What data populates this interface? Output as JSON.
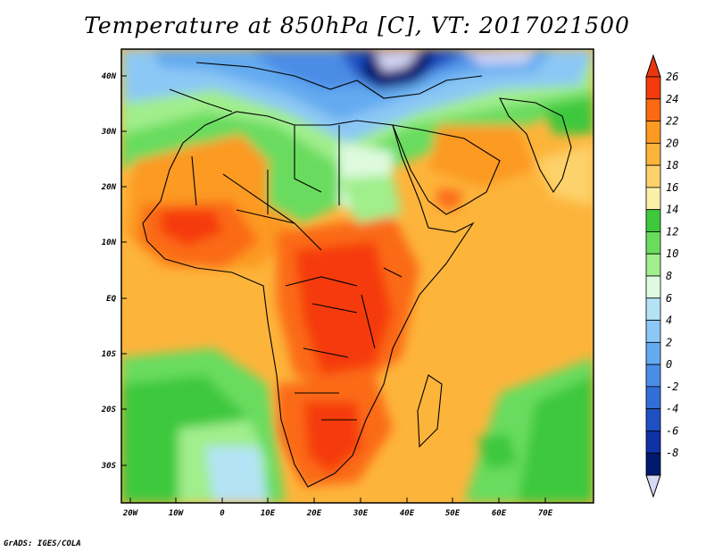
{
  "title": "Temperature at 850hPa [C], VT: 2017021500",
  "credit": "GrADS: IGES/COLA",
  "map": {
    "lat_labels": [
      "40N",
      "30N",
      "20N",
      "10N",
      "EQ",
      "10S",
      "20S",
      "30S"
    ],
    "lon_labels": [
      "20W",
      "10W",
      "0",
      "10E",
      "20E",
      "30E",
      "40E",
      "50E",
      "60E",
      "70E"
    ]
  },
  "colorbar": {
    "labels": [
      "26",
      "24",
      "22",
      "20",
      "18",
      "16",
      "14",
      "12",
      "10",
      "8",
      "6",
      "4",
      "2",
      "0",
      "-2",
      "-4",
      "-6",
      "-8"
    ],
    "colors": [
      "#f53a0c",
      "#fb6a12",
      "#fc9a22",
      "#fdb43b",
      "#fdd26b",
      "#fbf0a8",
      "#3ec83c",
      "#69dc5e",
      "#a0ee8c",
      "#dffadf",
      "#b4e3f5",
      "#8cc8f5",
      "#64aaf0",
      "#4b8ce6",
      "#326ed7",
      "#1e50c3",
      "#0f32a5",
      "#00196e"
    ],
    "arrow_top": "#e8380c",
    "arrow_bottom": "#d8d8f5"
  }
}
